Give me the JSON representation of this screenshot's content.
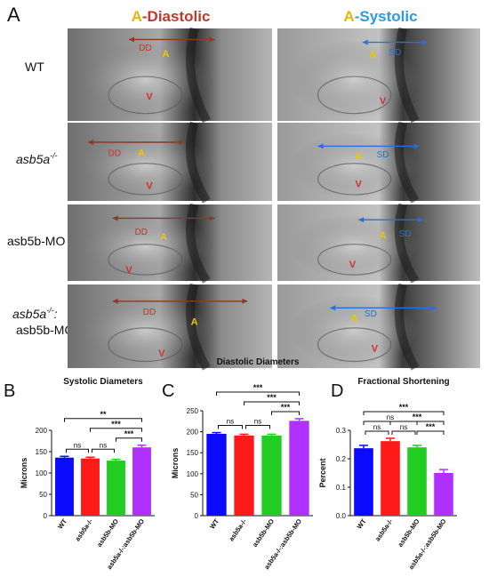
{
  "figure": {
    "panel_letter_A": "A",
    "diastolic_header": {
      "prefix": "A",
      "sep": "-",
      "word": "Diastolic"
    },
    "systolic_header": {
      "prefix": "A",
      "sep": "-",
      "word": "Systolic"
    },
    "row_labels": [
      {
        "lines": [
          "WT"
        ]
      },
      {
        "lines": [
          "asb5a",
          "-/-"
        ]
      },
      {
        "lines": [
          "asb5b-MO"
        ]
      },
      {
        "lines": [
          "asb5a",
          "-/-",
          ":",
          "asb5b-MO"
        ]
      }
    ],
    "image_annotations": {
      "atrium": "A",
      "ventricle": "V",
      "diastolic_diameter": "DD",
      "systolic_diameter": "SD"
    },
    "colors": {
      "header_yellow": "#e6b800",
      "diastolic_red": "#c0392b",
      "systolic_blue": "#2b9be0",
      "dd_arrow": "#8b3a1f",
      "sd_arrow": "#2b6fd6",
      "label_yellow": "#f0c400",
      "label_red": "#d03030"
    }
  },
  "chart_data": [
    {
      "panel": "B",
      "type": "bar",
      "title": "Systolic Diameters",
      "ylabel": "Microns",
      "ylim": [
        0,
        200
      ],
      "yticks": [
        "0",
        "50",
        "100",
        "150",
        "200"
      ],
      "categories": [
        "WT",
        "asb5a-/-",
        "asb5b-MO",
        "asb5a-/-:asb5b-MO"
      ],
      "values": [
        136,
        134,
        129,
        160
      ],
      "errors": [
        3,
        3,
        3,
        5
      ],
      "bar_colors": [
        "#0a0aff",
        "#ff1a1a",
        "#22cc22",
        "#b030ff"
      ],
      "significance": [
        {
          "from": 0,
          "to": 3,
          "label": "**"
        },
        {
          "from": 1,
          "to": 3,
          "label": "***"
        },
        {
          "from": 2,
          "to": 3,
          "label": "***"
        },
        {
          "from": 0,
          "to": 1,
          "label": "ns"
        },
        {
          "from": 1,
          "to": 2,
          "label": "ns"
        }
      ]
    },
    {
      "panel": "C",
      "type": "bar",
      "title": "Diastolic Diameters",
      "ylabel": "Microns",
      "ylim": [
        0,
        250
      ],
      "yticks": [
        "0",
        "50",
        "100",
        "150",
        "200",
        "250"
      ],
      "categories": [
        "WT",
        "asb5a-/-",
        "asb5b-MO",
        "asb5a-/-:asb5b-MO"
      ],
      "values": [
        195,
        191,
        191,
        226
      ],
      "errors": [
        3,
        3,
        3,
        5
      ],
      "bar_colors": [
        "#0a0aff",
        "#ff1a1a",
        "#22cc22",
        "#b030ff"
      ],
      "significance": [
        {
          "from": 0,
          "to": 3,
          "label": "***"
        },
        {
          "from": 1,
          "to": 3,
          "label": "***"
        },
        {
          "from": 2,
          "to": 3,
          "label": "***"
        },
        {
          "from": 0,
          "to": 1,
          "label": "ns"
        },
        {
          "from": 1,
          "to": 2,
          "label": "ns"
        }
      ]
    },
    {
      "panel": "D",
      "type": "bar",
      "title": "Fractional Shortening",
      "ylabel": "Percent",
      "ylim": [
        0,
        0.3
      ],
      "yticks": [
        "0.0",
        "0.1",
        "0.2",
        "0.3"
      ],
      "categories": [
        "WT",
        "asb5a-/-",
        "asb5b-MO",
        "asb5a-/-:asb5b-MO"
      ],
      "values": [
        0.237,
        0.262,
        0.24,
        0.15
      ],
      "errors": [
        0.01,
        0.01,
        0.007,
        0.012
      ],
      "bar_colors": [
        "#0a0aff",
        "#ff1a1a",
        "#22cc22",
        "#b030ff"
      ],
      "significance": [
        {
          "from": 0,
          "to": 3,
          "label": "***"
        },
        {
          "from": 1,
          "to": 3,
          "label": "***"
        },
        {
          "from": 2,
          "to": 3,
          "label": "***"
        },
        {
          "from": 0,
          "to": 1,
          "label": "ns"
        },
        {
          "from": 0,
          "to": 2,
          "label": "ns"
        },
        {
          "from": 1,
          "to": 2,
          "label": "ns"
        }
      ]
    }
  ]
}
